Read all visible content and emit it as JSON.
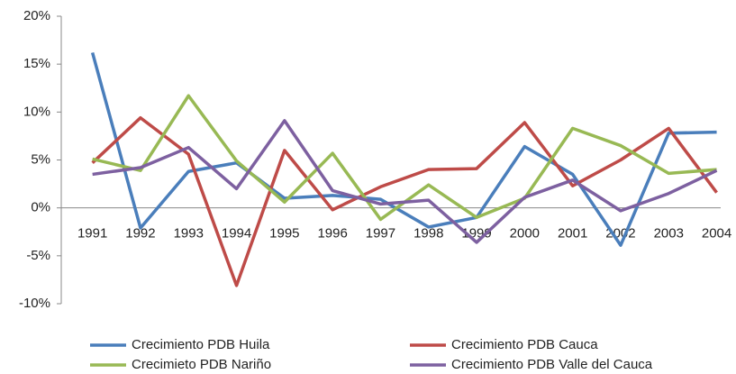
{
  "chart_data": {
    "type": "line",
    "categories": [
      "1991",
      "1992",
      "1993",
      "1994",
      "1995",
      "1996",
      "1997",
      "1998",
      "1999",
      "2000",
      "2001",
      "2002",
      "2003",
      "2004"
    ],
    "series": [
      {
        "name": "Crecimiento PDB Huila",
        "color": "#4a7ebb",
        "values": [
          16.2,
          -2.1,
          3.8,
          4.7,
          1.0,
          1.3,
          0.9,
          -2.0,
          -1.0,
          6.4,
          3.5,
          -3.9,
          7.8,
          7.9
        ]
      },
      {
        "name": "Crecimiento PDB Cauca",
        "color": "#be4b48",
        "values": [
          4.7,
          9.4,
          5.6,
          -8.1,
          6.0,
          -0.2,
          2.2,
          4.0,
          4.1,
          8.9,
          2.3,
          5.0,
          8.3,
          1.6
        ]
      },
      {
        "name": "Crecimieto PDB Nariño",
        "color": "#98b954",
        "values": [
          5.1,
          3.9,
          11.7,
          4.9,
          0.6,
          5.7,
          -1.2,
          2.4,
          -1.0,
          1.0,
          8.3,
          6.5,
          3.6,
          4.0
        ]
      },
      {
        "name": "Crecimiento PDB Valle del Cauca",
        "color": "#7d60a0",
        "values": [
          3.5,
          4.2,
          6.3,
          2.0,
          9.1,
          1.8,
          0.4,
          0.8,
          -3.6,
          1.1,
          2.9,
          -0.3,
          1.5,
          3.9
        ]
      }
    ],
    "ylim": [
      -10,
      20
    ],
    "yticks": [
      {
        "value": -10,
        "label": "-10%"
      },
      {
        "value": -5,
        "label": "-5%"
      },
      {
        "value": 0,
        "label": "0%"
      },
      {
        "value": 5,
        "label": "5%"
      },
      {
        "value": 10,
        "label": "10%"
      },
      {
        "value": 15,
        "label": "15%"
      },
      {
        "value": 20,
        "label": "20%"
      }
    ],
    "grid": false,
    "legend": "bottom"
  }
}
